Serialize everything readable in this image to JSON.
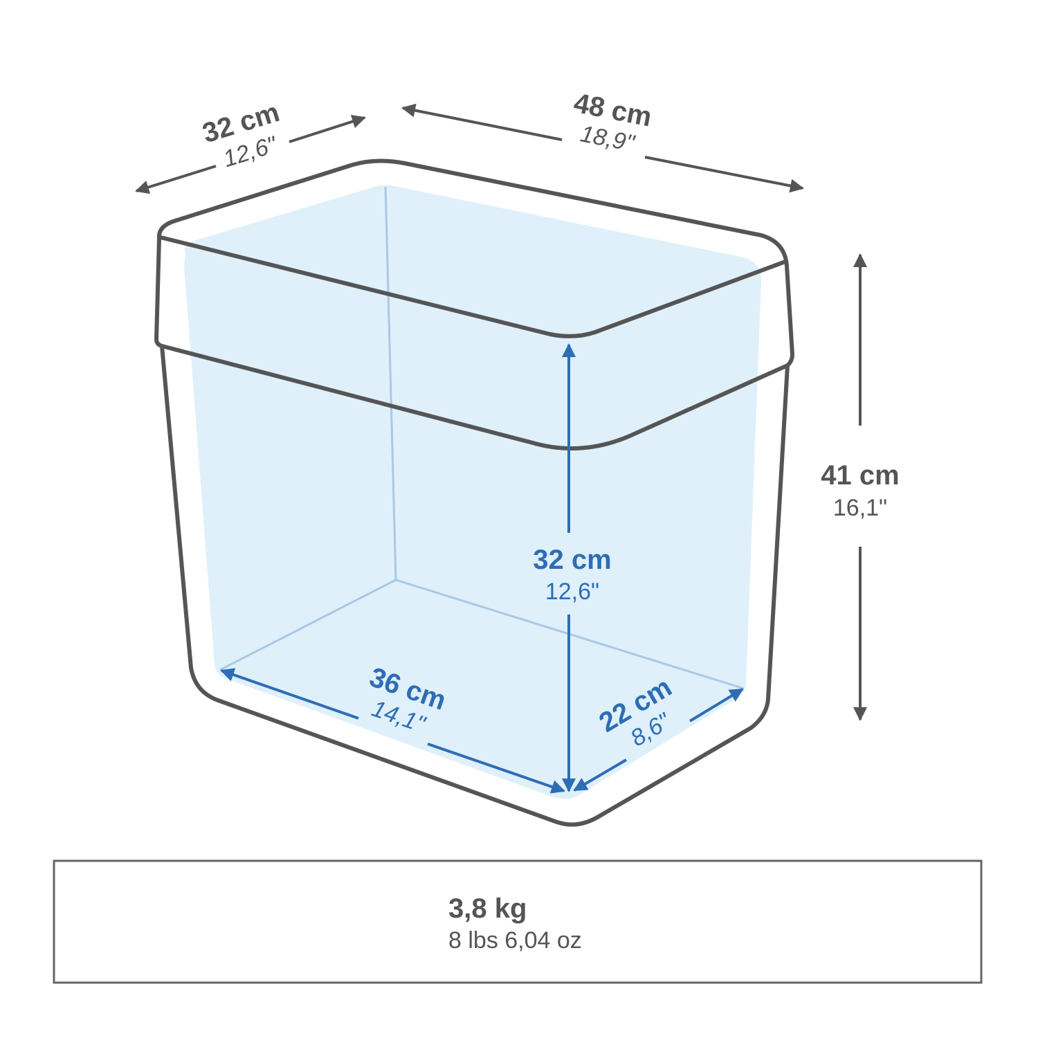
{
  "colors": {
    "outline": "#555555",
    "accent": "#2e6db4",
    "fill": "#dff0fa",
    "inner_line": "#a9c8e6"
  },
  "outer": {
    "depth": {
      "metric": "32 cm",
      "imperial": "12,6\""
    },
    "width": {
      "metric": "48 cm",
      "imperial": "18,9\""
    },
    "height": {
      "metric": "41 cm",
      "imperial": "16,1\""
    }
  },
  "inner": {
    "height": {
      "metric": "32 cm",
      "imperial": "12,6\""
    },
    "width": {
      "metric": "36 cm",
      "imperial": "14,1\""
    },
    "depth": {
      "metric": "22 cm",
      "imperial": "8,6\""
    }
  },
  "weight": {
    "metric": "3,8 kg",
    "imperial": "8 lbs 6,04 oz"
  }
}
